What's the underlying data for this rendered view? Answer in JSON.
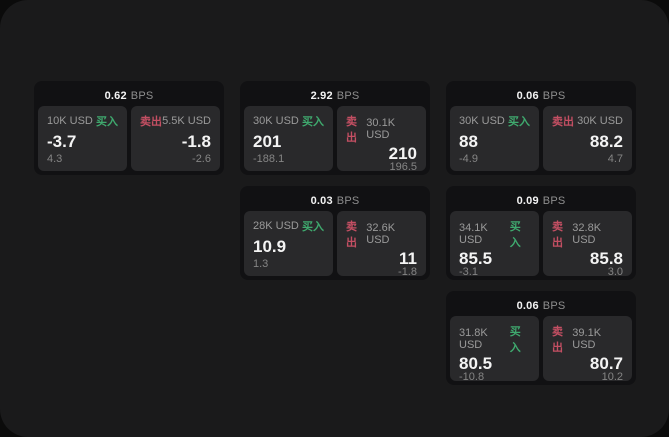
{
  "labels": {
    "bps_unit": "BPS",
    "buy": "买入",
    "sell": "卖出"
  },
  "colors": {
    "outer_background": "#0b0b0b",
    "window_background": "#1a1a1b",
    "card_background": "#111113",
    "panel_background": "#29292b",
    "buy_green": "#3fa96e",
    "sell_red": "#c44f63",
    "text_primary": "#f4f4f4",
    "text_secondary": "#8f8f8f"
  },
  "cards": [
    {
      "bps": "0.62",
      "buy": {
        "amount": "10K USD",
        "value": "-3.7",
        "sub": "4.3"
      },
      "sell": {
        "amount": "5.5K USD",
        "value": "-1.8",
        "sub": "-2.6"
      }
    },
    {
      "bps": "2.92",
      "buy": {
        "amount": "30K USD",
        "value": "201",
        "sub": "-188.1"
      },
      "sell": {
        "amount": "30.1K USD",
        "value": "210",
        "sub": "196.5"
      }
    },
    {
      "bps": "0.06",
      "buy": {
        "amount": "30K USD",
        "value": "88",
        "sub": "-4.9"
      },
      "sell": {
        "amount": "30K USD",
        "value": "88.2",
        "sub": "4.7"
      }
    },
    {
      "bps": "0.03",
      "buy": {
        "amount": "28K USD",
        "value": "10.9",
        "sub": "1.3"
      },
      "sell": {
        "amount": "32.6K USD",
        "value": "11",
        "sub": "-1.8"
      }
    },
    {
      "bps": "0.09",
      "buy": {
        "amount": "34.1K USD",
        "value": "85.5",
        "sub": "-3.1"
      },
      "sell": {
        "amount": "32.8K USD",
        "value": "85.8",
        "sub": "3.0"
      }
    },
    {
      "bps": "0.06",
      "buy": {
        "amount": "31.8K USD",
        "value": "80.5",
        "sub": "-10.8"
      },
      "sell": {
        "amount": "39.1K USD",
        "value": "80.7",
        "sub": "10.2"
      }
    }
  ]
}
